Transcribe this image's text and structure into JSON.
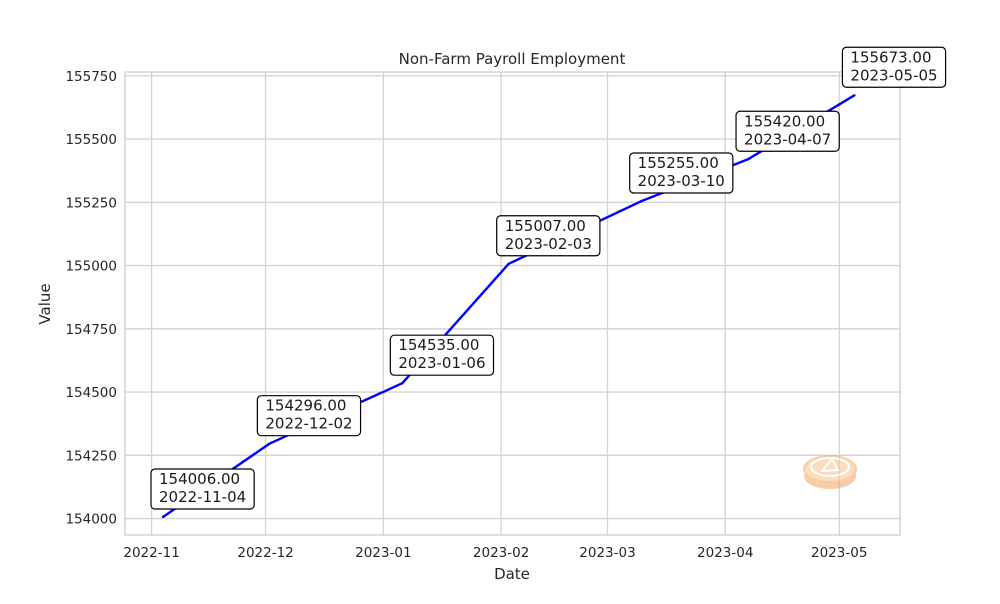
{
  "chart_data": {
    "type": "line",
    "title": "Non-Farm Payroll Employment",
    "xlabel": "Date",
    "ylabel": "Value",
    "series": [
      {
        "color": "#0000ff",
        "points": [
          {
            "x": "2022-11-04",
            "y": 154006.0
          },
          {
            "x": "2022-12-02",
            "y": 154296.0
          },
          {
            "x": "2023-01-06",
            "y": 154535.0
          },
          {
            "x": "2023-02-03",
            "y": 155007.0
          },
          {
            "x": "2023-03-10",
            "y": 155255.0
          },
          {
            "x": "2023-04-07",
            "y": 155420.0
          },
          {
            "x": "2023-05-05",
            "y": 155673.0
          }
        ]
      }
    ],
    "annotations": [
      {
        "x": "2022-11-04",
        "value_label": "154006.00",
        "date_label": "2022-11-04"
      },
      {
        "x": "2022-12-02",
        "value_label": "154296.00",
        "date_label": "2022-12-02"
      },
      {
        "x": "2023-01-06",
        "value_label": "154535.00",
        "date_label": "2023-01-06"
      },
      {
        "x": "2023-02-03",
        "value_label": "155007.00",
        "date_label": "2023-02-03"
      },
      {
        "x": "2023-03-10",
        "value_label": "155255.00",
        "date_label": "2023-03-10"
      },
      {
        "x": "2023-04-07",
        "value_label": "155420.00",
        "date_label": "2023-04-07"
      },
      {
        "x": "2023-05-05",
        "value_label": "155673.00",
        "date_label": "2023-05-05"
      }
    ],
    "xlim": [
      "2022-10-25",
      "2023-05-17"
    ],
    "ylim": [
      153935,
      155765
    ],
    "x_ticks": [
      {
        "date": "2022-11-01",
        "label": "2022-11"
      },
      {
        "date": "2022-12-01",
        "label": "2022-12"
      },
      {
        "date": "2023-01-01",
        "label": "2023-01"
      },
      {
        "date": "2023-02-01",
        "label": "2023-02"
      },
      {
        "date": "2023-03-01",
        "label": "2023-03"
      },
      {
        "date": "2023-04-01",
        "label": "2023-04"
      },
      {
        "date": "2023-05-01",
        "label": "2023-05"
      }
    ],
    "y_ticks": [
      154000,
      154250,
      154500,
      154750,
      155000,
      155250,
      155500,
      155750
    ],
    "grid": true,
    "legend": "none"
  },
  "watermark": {
    "icon": "coin-logo-icon",
    "color": "#f4a460"
  }
}
